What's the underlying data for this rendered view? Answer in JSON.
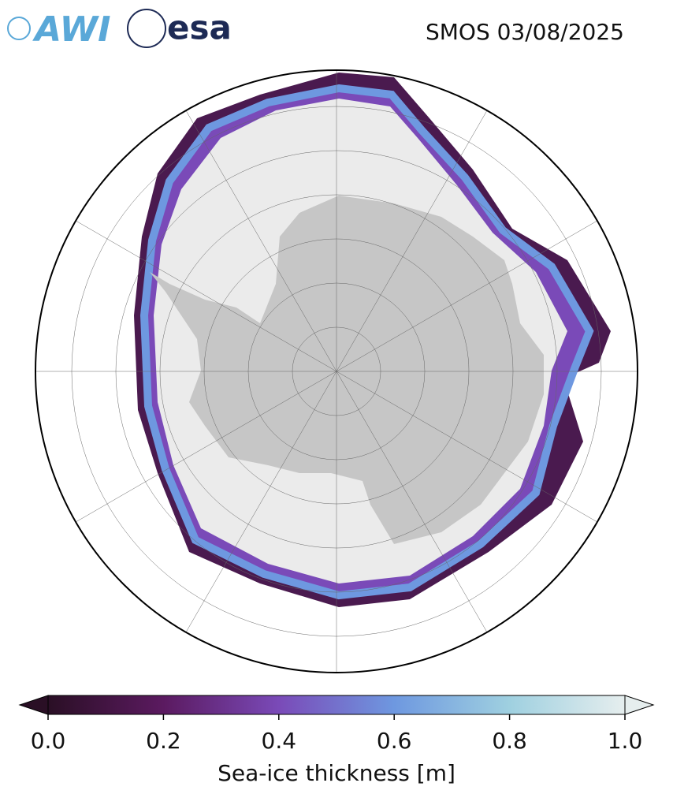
{
  "header": {
    "logo_left": "AWI",
    "logo_right": "esa",
    "title": "SMOS 03/08/2025"
  },
  "colorbar": {
    "label": "Sea-ice thickness [m]",
    "lim": [
      0,
      1
    ],
    "ticks": [
      {
        "value": 0,
        "label": "0.0"
      },
      {
        "value": 0.2,
        "label": "0.2"
      },
      {
        "value": 0.4,
        "label": "0.4"
      },
      {
        "value": 0.6,
        "label": "0.6"
      },
      {
        "value": 0.8,
        "label": "0.8"
      },
      {
        "value": 1,
        "label": "1.0"
      }
    ]
  }
}
